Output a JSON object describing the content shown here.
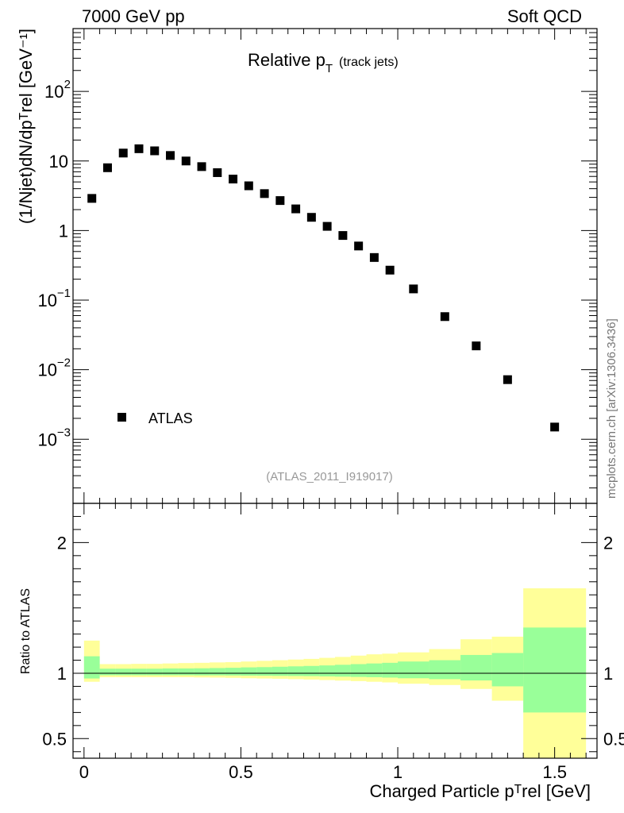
{
  "header": {
    "left": "7000 GeV pp",
    "right": "Soft QCD"
  },
  "side_note": "mcplots.cern.ch [arXiv:1306.3436]",
  "chart_data": [
    {
      "type": "scatter",
      "panel": "main",
      "title_main": "Relative p",
      "title_sub": "T",
      "title_extra": "(track jets)",
      "analysis_label": "(ATLAS_2011_I919017)",
      "ylabel": "(1/Njet)dN/dpᵀrel [GeV⁻¹]",
      "yscale": "log",
      "ylim": [
        0.00012,
        800
      ],
      "xlim": [
        -0.035,
        1.635
      ],
      "ytick_labels": [
        {
          "value": 100,
          "base": "10",
          "exp": "2"
        },
        {
          "value": 10,
          "base": "10",
          "exp": ""
        },
        {
          "value": 1,
          "base": "1",
          "exp": ""
        },
        {
          "value": 0.1,
          "base": "10",
          "exp": "−1"
        },
        {
          "value": 0.01,
          "base": "10",
          "exp": "−2"
        },
        {
          "value": 0.001,
          "base": "10",
          "exp": "−3"
        }
      ],
      "legend": {
        "label": "ATLAS",
        "position": "bottom-left"
      },
      "series": [
        {
          "name": "ATLAS",
          "x": [
            0.025,
            0.075,
            0.125,
            0.175,
            0.225,
            0.275,
            0.325,
            0.375,
            0.425,
            0.475,
            0.525,
            0.575,
            0.625,
            0.675,
            0.725,
            0.775,
            0.825,
            0.875,
            0.925,
            0.975,
            1.05,
            1.15,
            1.25,
            1.35,
            1.5
          ],
          "y": [
            2.9,
            8.0,
            13.0,
            15.0,
            14.0,
            12.0,
            10.0,
            8.3,
            6.8,
            5.5,
            4.4,
            3.4,
            2.7,
            2.05,
            1.55,
            1.15,
            0.85,
            0.6,
            0.41,
            0.27,
            0.145,
            0.058,
            0.022,
            0.0072,
            0.0015
          ]
        }
      ]
    },
    {
      "type": "area",
      "panel": "ratio",
      "ylabel": "Ratio to ATLAS",
      "xlabel": "Charged Particle pᵀrel [GeV]",
      "ylim": [
        0.35,
        2.3
      ],
      "xlim": [
        -0.035,
        1.635
      ],
      "ytick_labels": [
        "0.5",
        "1",
        "2"
      ],
      "ytick_values": [
        0.5,
        1,
        2
      ],
      "xtick_labels": [
        "0",
        "0.5",
        "1",
        "1.5"
      ],
      "xtick_values": [
        0,
        0.5,
        1,
        1.5
      ],
      "bins": [
        {
          "x0": 0.0,
          "x1": 0.05,
          "stat_lo": 0.96,
          "stat_hi": 1.13,
          "tot_lo": 0.935,
          "tot_hi": 1.25
        },
        {
          "x0": 0.05,
          "x1": 0.1,
          "stat_lo": 0.985,
          "stat_hi": 1.035,
          "tot_lo": 0.97,
          "tot_hi": 1.07
        },
        {
          "x0": 0.1,
          "x1": 0.15,
          "stat_lo": 0.985,
          "stat_hi": 1.035,
          "tot_lo": 0.97,
          "tot_hi": 1.07
        },
        {
          "x0": 0.15,
          "x1": 0.2,
          "stat_lo": 0.985,
          "stat_hi": 1.035,
          "tot_lo": 0.97,
          "tot_hi": 1.072
        },
        {
          "x0": 0.2,
          "x1": 0.25,
          "stat_lo": 0.985,
          "stat_hi": 1.035,
          "tot_lo": 0.97,
          "tot_hi": 1.072
        },
        {
          "x0": 0.25,
          "x1": 0.3,
          "stat_lo": 0.985,
          "stat_hi": 1.037,
          "tot_lo": 0.97,
          "tot_hi": 1.075
        },
        {
          "x0": 0.3,
          "x1": 0.35,
          "stat_lo": 0.985,
          "stat_hi": 1.037,
          "tot_lo": 0.97,
          "tot_hi": 1.078
        },
        {
          "x0": 0.35,
          "x1": 0.4,
          "stat_lo": 0.984,
          "stat_hi": 1.038,
          "tot_lo": 0.968,
          "tot_hi": 1.08
        },
        {
          "x0": 0.4,
          "x1": 0.45,
          "stat_lo": 0.984,
          "stat_hi": 1.04,
          "tot_lo": 0.967,
          "tot_hi": 1.083
        },
        {
          "x0": 0.45,
          "x1": 0.5,
          "stat_lo": 0.983,
          "stat_hi": 1.042,
          "tot_lo": 0.965,
          "tot_hi": 1.085
        },
        {
          "x0": 0.5,
          "x1": 0.55,
          "stat_lo": 0.982,
          "stat_hi": 1.045,
          "tot_lo": 0.962,
          "tot_hi": 1.09
        },
        {
          "x0": 0.55,
          "x1": 0.6,
          "stat_lo": 0.981,
          "stat_hi": 1.047,
          "tot_lo": 0.96,
          "tot_hi": 1.095
        },
        {
          "x0": 0.6,
          "x1": 0.65,
          "stat_lo": 0.98,
          "stat_hi": 1.05,
          "tot_lo": 0.958,
          "tot_hi": 1.1
        },
        {
          "x0": 0.65,
          "x1": 0.7,
          "stat_lo": 0.979,
          "stat_hi": 1.053,
          "tot_lo": 0.955,
          "tot_hi": 1.105
        },
        {
          "x0": 0.7,
          "x1": 0.75,
          "stat_lo": 0.978,
          "stat_hi": 1.056,
          "tot_lo": 0.952,
          "tot_hi": 1.11
        },
        {
          "x0": 0.75,
          "x1": 0.8,
          "stat_lo": 0.976,
          "stat_hi": 1.06,
          "tot_lo": 0.948,
          "tot_hi": 1.118
        },
        {
          "x0": 0.8,
          "x1": 0.85,
          "stat_lo": 0.974,
          "stat_hi": 1.065,
          "tot_lo": 0.944,
          "tot_hi": 1.125
        },
        {
          "x0": 0.85,
          "x1": 0.9,
          "stat_lo": 0.972,
          "stat_hi": 1.07,
          "tot_lo": 0.94,
          "tot_hi": 1.135
        },
        {
          "x0": 0.9,
          "x1": 0.95,
          "stat_lo": 0.97,
          "stat_hi": 1.075,
          "tot_lo": 0.935,
          "tot_hi": 1.145
        },
        {
          "x0": 0.95,
          "x1": 1.0,
          "stat_lo": 0.967,
          "stat_hi": 1.08,
          "tot_lo": 0.93,
          "tot_hi": 1.15
        },
        {
          "x0": 1.0,
          "x1": 1.1,
          "stat_lo": 0.962,
          "stat_hi": 1.09,
          "tot_lo": 0.92,
          "tot_hi": 1.16
        },
        {
          "x0": 1.1,
          "x1": 1.2,
          "stat_lo": 0.955,
          "stat_hi": 1.1,
          "tot_lo": 0.91,
          "tot_hi": 1.185
        },
        {
          "x0": 1.2,
          "x1": 1.3,
          "stat_lo": 0.945,
          "stat_hi": 1.14,
          "tot_lo": 0.88,
          "tot_hi": 1.26
        },
        {
          "x0": 1.3,
          "x1": 1.4,
          "stat_lo": 0.9,
          "stat_hi": 1.155,
          "tot_lo": 0.79,
          "tot_hi": 1.28
        },
        {
          "x0": 1.4,
          "x1": 1.6,
          "stat_lo": 0.7,
          "stat_hi": 1.35,
          "tot_lo": 0.35,
          "tot_hi": 1.65
        }
      ],
      "reference_line": 1,
      "colors": {
        "stat": "#99ff99",
        "total": "#ffff99",
        "line": "#000000"
      }
    }
  ]
}
